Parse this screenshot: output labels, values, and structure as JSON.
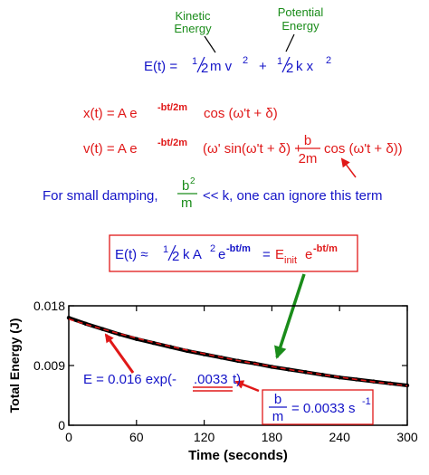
{
  "labels": {
    "kinetic_1": "Kinetic",
    "kinetic_2": "Energy",
    "potential_1": "Potential",
    "potential_2": "Energy"
  },
  "equations": {
    "energy": {
      "lhs": "E(t) =",
      "half1": "1",
      "half1_den": "2",
      "ke": "m v",
      "ke_exp": "2",
      "plus": "+",
      "half2": "1",
      "half2_den": "2",
      "pe": "k x",
      "pe_exp": "2"
    },
    "position": {
      "lhs": "x(t) = A e",
      "exp": "-bt/2m",
      "rest": "cos (ω't + δ)"
    },
    "velocity": {
      "lhs": "v(t) = A e",
      "exp": "-bt/2m",
      "mid": "(ω' sin(ω't + δ) +",
      "frac_num": "b",
      "frac_den": "2m",
      "rest": "cos (ω't + δ))"
    },
    "note": {
      "pre": "For small damping,",
      "frac_num": "b",
      "frac_num_exp": "2",
      "frac_den": "m",
      "post": "<< k,  one can ignore this term"
    },
    "approx": {
      "lhs": "E(t) ≈",
      "half": "1",
      "half_den": "2",
      "mid": "k A",
      "mid_exp": "2",
      "e": "e",
      "e_exp": "-bt/m",
      "eq": "=",
      "rhs": "E",
      "rhs_sub": "init",
      "rhs_e": "e",
      "rhs_exp": "-bt/m"
    },
    "fit": {
      "pre": "E = 0.016 exp(-",
      "coef": ".0033",
      "post": "t)"
    },
    "ratio": {
      "num": "b",
      "den": "m",
      "val": "= 0.0033  s",
      "exp": "-1"
    }
  },
  "colors": {
    "green": "#1a8c1a",
    "blue": "#1414c8",
    "red": "#e01818",
    "black": "#000000"
  },
  "chart_data": {
    "type": "line",
    "xlabel": "Time (seconds)",
    "ylabel": "Total Energy (J)",
    "xlim": [
      0,
      300
    ],
    "ylim": [
      0,
      0.018
    ],
    "xticks": [
      0,
      60,
      120,
      180,
      240,
      300
    ],
    "xtick_labels": [
      "0",
      "60",
      "120",
      "180",
      "240",
      "300"
    ],
    "yticks": [
      0,
      0.009,
      0.018
    ],
    "ytick_labels": [
      "0",
      "0.009",
      "0.018"
    ],
    "series": [
      {
        "kind": "measured",
        "x": [
          0,
          15,
          30,
          45,
          60,
          75,
          90,
          105,
          120,
          135,
          150,
          165,
          180,
          195,
          210,
          225,
          240,
          255,
          270,
          285,
          300
        ],
        "y": [
          0.0162,
          0.0153,
          0.0145,
          0.0137,
          0.013,
          0.0124,
          0.0118,
          0.0112,
          0.0107,
          0.0102,
          0.0097,
          0.0093,
          0.0088,
          0.0084,
          0.008,
          0.0076,
          0.0072,
          0.0069,
          0.0066,
          0.0063,
          0.006
        ]
      },
      {
        "kind": "fit",
        "function": "0.016*exp(-0.0033*t)",
        "amplitude": 0.016,
        "rate": 0.0033
      }
    ],
    "grid": false
  }
}
